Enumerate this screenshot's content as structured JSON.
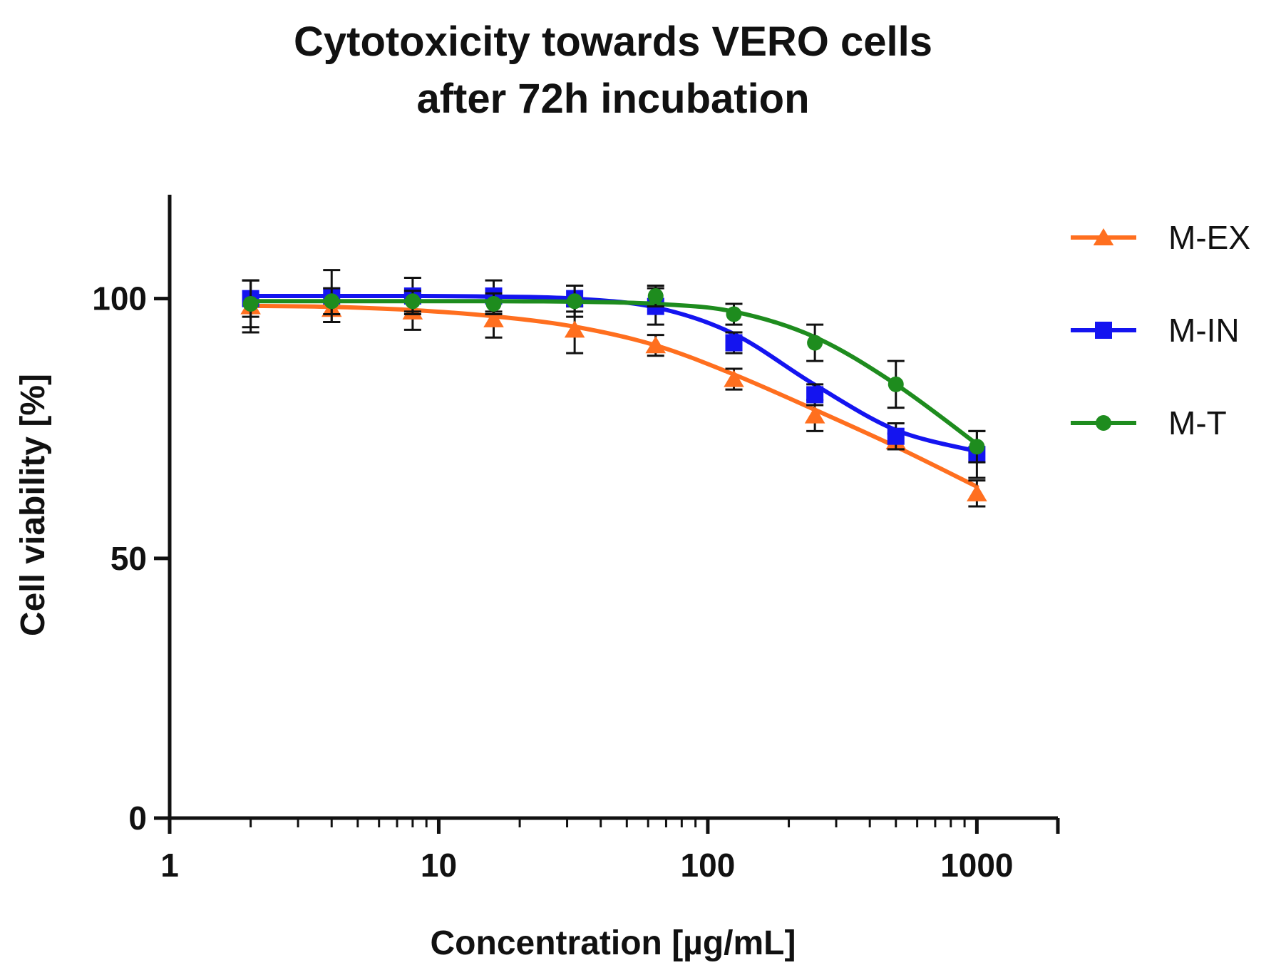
{
  "chart_data": {
    "type": "line",
    "title_lines": [
      "Cytotoxicity towards VERO cells",
      "after 72h incubation"
    ],
    "xlabel": "Concentration [µg/mL]",
    "ylabel": "Cell viability [%]",
    "x_scale": "log",
    "xlim": [
      1,
      2000
    ],
    "ylim": [
      0,
      120
    ],
    "x_ticks": [
      1,
      10,
      100,
      1000
    ],
    "x_tick_labels": [
      "1",
      "10",
      "100",
      "1000"
    ],
    "y_ticks": [
      0,
      50,
      100
    ],
    "y_tick_labels": [
      "0",
      "50",
      "100"
    ],
    "grid": false,
    "legend_position": "right",
    "x": [
      2,
      4,
      8,
      16,
      32,
      64,
      125,
      250,
      500,
      1000
    ],
    "series": [
      {
        "name": "M-EX",
        "color": "#FF6F1F",
        "marker": "triangle",
        "values": [
          98.5,
          98.0,
          97.5,
          96.0,
          94.0,
          91.0,
          84.5,
          77.5,
          72.5,
          62.5
        ],
        "errors": [
          5.0,
          2.5,
          3.5,
          3.5,
          4.5,
          2.0,
          2.0,
          3.0,
          1.5,
          2.5
        ],
        "fit": [
          98.6,
          98.4,
          97.8,
          96.6,
          94.6,
          91.0,
          85.4,
          78.6,
          71.5,
          63.8
        ]
      },
      {
        "name": "M-IN",
        "color": "#1414F0",
        "marker": "square",
        "values": [
          100.0,
          100.5,
          100.5,
          100.5,
          100.0,
          98.5,
          91.5,
          81.5,
          73.5,
          70.0
        ],
        "errors": [
          3.5,
          5.0,
          3.5,
          3.0,
          2.5,
          3.5,
          2.0,
          2.0,
          2.5,
          4.5
        ],
        "fit": [
          100.5,
          100.5,
          100.5,
          100.4,
          100.0,
          98.3,
          93.2,
          83.4,
          74.7,
          70.6
        ]
      },
      {
        "name": "M-T",
        "color": "#1E8C1E",
        "marker": "circle",
        "values": [
          99.0,
          99.5,
          99.5,
          99.0,
          99.5,
          100.5,
          97.0,
          91.5,
          83.5,
          71.5
        ],
        "errors": [
          4.5,
          2.5,
          2.0,
          2.0,
          3.0,
          2.0,
          2.0,
          3.5,
          4.5,
          3.0
        ],
        "fit": [
          99.5,
          99.5,
          99.5,
          99.5,
          99.4,
          99.0,
          97.5,
          92.6,
          83.5,
          72.0
        ]
      }
    ]
  }
}
